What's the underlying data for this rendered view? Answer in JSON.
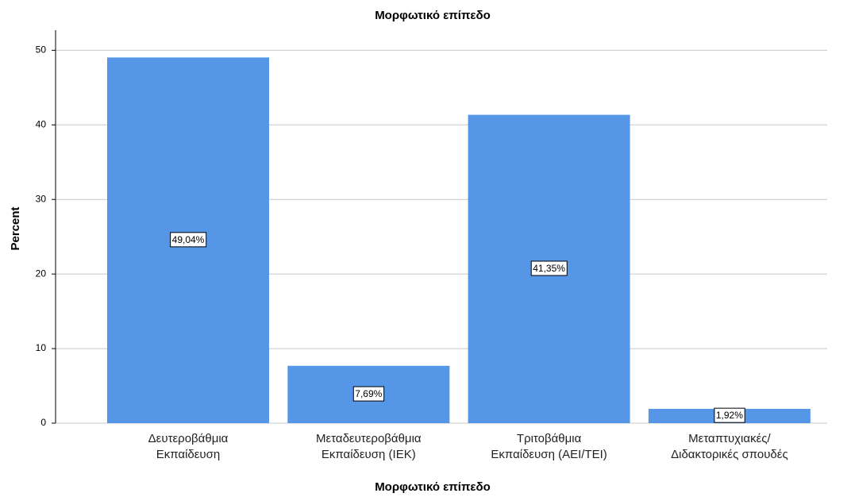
{
  "chart_data": {
    "type": "bar",
    "title": "Μορφωτικό επίπεδο",
    "x_label": "Μορφωτικό επίπεδο",
    "y_label": "Percent",
    "categories": [
      [
        "Δευτεροβάθμια",
        "Εκπαίδευση"
      ],
      [
        "Μεταδευτεροβάθμια",
        "Εκπαίδευση (ΙΕΚ)"
      ],
      [
        "Τριτοβάθμια",
        "Εκπαίδευση (ΑΕΙ/ΤΕΙ)"
      ],
      [
        "Μεταπτυχιακές/",
        "Διδακτορικές σπουδές"
      ]
    ],
    "values": [
      49.04,
      7.69,
      41.35,
      1.92
    ],
    "value_labels": [
      "49,04%",
      "7,69%",
      "41,35%",
      "1,92%"
    ],
    "color": "#5596e6",
    "ylim": [
      0,
      52.7
    ],
    "yticks": [
      0,
      10,
      20,
      30,
      40,
      50
    ],
    "grid": true
  }
}
